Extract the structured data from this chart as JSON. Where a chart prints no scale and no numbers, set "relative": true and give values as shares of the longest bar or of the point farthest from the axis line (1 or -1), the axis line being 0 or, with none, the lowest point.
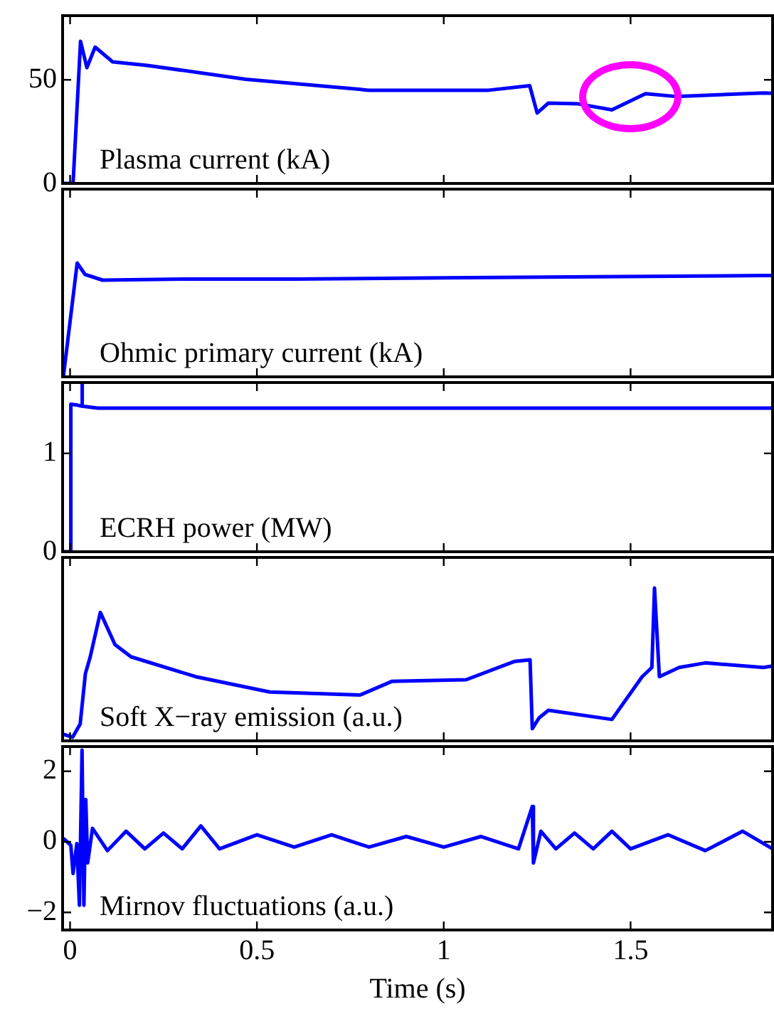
{
  "chart_data": [
    {
      "type": "line",
      "annotations": [
        "Plasma current (kA)"
      ],
      "tick_labels": "y",
      "xlim": [
        -0.02,
        1.88
      ],
      "xticks": [
        0,
        0.5,
        1,
        1.5
      ],
      "ylim": [
        0,
        81
      ],
      "yticks": [
        0,
        50
      ],
      "series": [
        {
          "color": "#0000ff",
          "x": [
            -0.02,
            0.008,
            0.028,
            0.045,
            0.067,
            0.114,
            0.206,
            0.47,
            0.8,
            1.12,
            1.23,
            1.25,
            1.28,
            1.36,
            1.45,
            1.54,
            1.62,
            1.855,
            1.88
          ],
          "values": [
            0,
            0,
            68.6,
            55.9,
            65.8,
            58.7,
            57,
            50.3,
            45,
            45,
            47.2,
            34,
            38.8,
            38.4,
            35.5,
            43.3,
            42,
            43.7,
            43.5
          ]
        }
      ]
    },
    {
      "type": "line",
      "annotations": [
        "Ohmic primary current (kA)"
      ],
      "tick_labels": false,
      "relative": true,
      "xlim": [
        -0.02,
        1.88
      ],
      "xticks": [
        0,
        0.5,
        1,
        1.5
      ],
      "series": [
        {
          "color": "#0000ff",
          "x": [
            -0.018,
            0.019,
            0.04,
            0.087,
            0.3,
            0.6,
            1.0,
            1.4,
            1.855,
            1.88
          ],
          "values": [
            0,
            1.0,
            0.9,
            0.85,
            0.86,
            0.86,
            0.87,
            0.88,
            0.89,
            0.89
          ]
        }
      ]
    },
    {
      "type": "line",
      "annotations": [
        "ECRH power (MW)"
      ],
      "tick_labels": "y",
      "xlim": [
        -0.02,
        1.88
      ],
      "xticks": [
        0,
        0.5,
        1,
        1.5
      ],
      "ylim": [
        0,
        1.72
      ],
      "yticks": [
        0,
        1
      ],
      "series": [
        {
          "color": "#0000ff",
          "x": [
            -0.02,
            0.001,
            0.002,
            0.02,
            0.031,
            0.032,
            0.033,
            0.074,
            1.0,
            1.88
          ],
          "values": [
            0,
            0,
            1.5,
            1.49,
            1.48,
            1.72,
            1.48,
            1.46,
            1.46,
            1.46
          ]
        }
      ]
    },
    {
      "type": "line",
      "annotations": [
        "Soft X−ray emission (a.u.)"
      ],
      "tick_labels": false,
      "relative": true,
      "xlim": [
        -0.02,
        1.88
      ],
      "xticks": [
        0,
        0.5,
        1,
        1.5
      ],
      "series": [
        {
          "color": "#0000ff",
          "x": [
            -0.018,
            0.007,
            0.027,
            0.041,
            0.054,
            0.081,
            0.12,
            0.163,
            0.336,
            0.534,
            0.776,
            0.862,
            1.06,
            1.19,
            1.231,
            1.237,
            1.255,
            1.28,
            1.45,
            1.531,
            1.557,
            1.564,
            1.577,
            1.63,
            1.7,
            1.855,
            1.88
          ],
          "values": [
            0.043,
            0.024,
            0.11,
            0.44,
            0.55,
            0.84,
            0.63,
            0.55,
            0.42,
            0.32,
            0.3,
            0.39,
            0.4,
            0.52,
            0.53,
            0.08,
            0.15,
            0.2,
            0.14,
            0.42,
            0.48,
            1.0,
            0.42,
            0.48,
            0.51,
            0.48,
            0.49
          ]
        }
      ]
    },
    {
      "type": "line",
      "annotations": [
        "Mirnov fluctuations (a.u.)"
      ],
      "xlabel": "Time (s)",
      "xlim": [
        -0.02,
        1.88
      ],
      "xticks": [
        0,
        0.5,
        1,
        1.5
      ],
      "ylim": [
        -2.5,
        2.7
      ],
      "yticks": [
        {
          "value": -2,
          "label": "−2"
        },
        0,
        2
      ],
      "series": [
        {
          "color": "#0000ff",
          "x": [
            -0.018,
            0.002,
            0.008,
            0.018,
            0.025,
            0.032,
            0.037,
            0.042,
            0.047,
            0.06,
            0.1,
            0.15,
            0.2,
            0.25,
            0.3,
            0.35,
            0.4,
            0.5,
            0.6,
            0.7,
            0.8,
            0.9,
            1.0,
            1.1,
            1.2,
            1.237,
            1.24,
            1.26,
            1.3,
            1.35,
            1.4,
            1.45,
            1.5,
            1.6,
            1.7,
            1.8,
            1.88
          ],
          "values": [
            0.1,
            -0.1,
            -0.9,
            -0.05,
            -1.8,
            2.6,
            -1.8,
            1.2,
            -0.6,
            0.38,
            -0.25,
            0.3,
            -0.2,
            0.25,
            -0.2,
            0.45,
            -0.2,
            0.2,
            -0.15,
            0.2,
            -0.15,
            0.15,
            -0.15,
            0.15,
            -0.2,
            1.0,
            -0.6,
            0.3,
            -0.2,
            0.25,
            -0.2,
            0.3,
            -0.2,
            0.2,
            -0.25,
            0.3,
            -0.2
          ]
        }
      ]
    }
  ]
}
